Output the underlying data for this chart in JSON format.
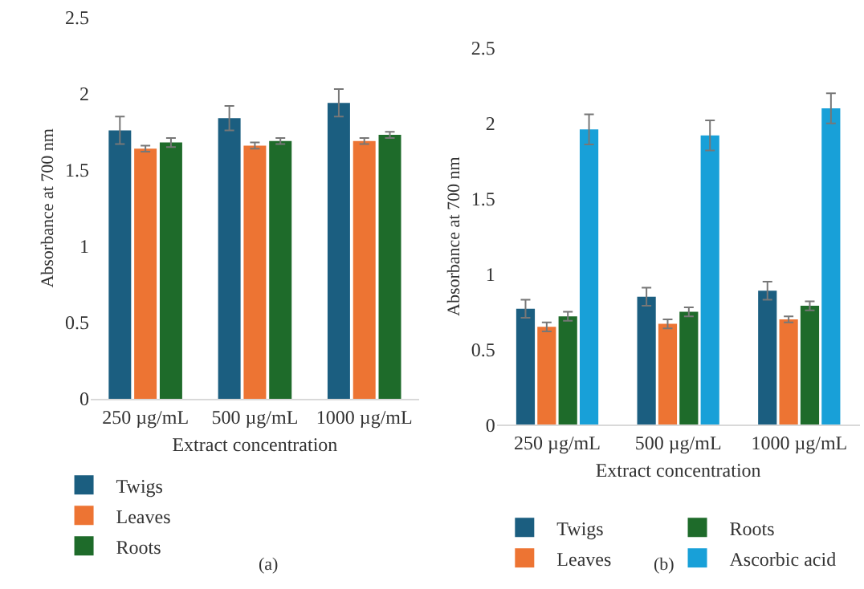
{
  "chart_data": [
    {
      "type": "bar",
      "xlabel": "Extract concentration",
      "ylabel": "Absorbance at 700 nm",
      "categories": [
        "250 µg/mL",
        "500 µg/mL",
        "1000 µg/mL"
      ],
      "ylim": [
        0,
        2.5
      ],
      "yticks": [
        0,
        0.5,
        1,
        1.5,
        2,
        2.5
      ],
      "legend": "bottom left",
      "grid": false,
      "annotations": [
        "(a)"
      ],
      "series": [
        {
          "name": "Twigs",
          "color": "#1b5e80",
          "values": [
            1.76,
            1.84,
            1.94
          ],
          "errors": [
            0.09,
            0.08,
            0.09
          ]
        },
        {
          "name": "Leaves",
          "color": "#ed7433",
          "values": [
            1.64,
            1.66,
            1.69
          ],
          "errors": [
            0.02,
            0.02,
            0.02
          ]
        },
        {
          "name": "Roots",
          "color": "#1e6b2a",
          "values": [
            1.68,
            1.69,
            1.73
          ],
          "errors": [
            0.03,
            0.02,
            0.02
          ]
        }
      ]
    },
    {
      "type": "bar",
      "xlabel": "Extract concentration",
      "ylabel": "Absorbance at 700 nm",
      "categories": [
        "250 µg/mL",
        "500 µg/mL",
        "1000 µg/mL"
      ],
      "ylim": [
        0,
        2.5
      ],
      "yticks": [
        0,
        0.5,
        1,
        1.5,
        2,
        2.5
      ],
      "legend": "bottom",
      "grid": false,
      "annotations": [
        "(b)"
      ],
      "series": [
        {
          "name": "Twigs",
          "color": "#1b5e80",
          "values": [
            0.77,
            0.85,
            0.89
          ],
          "errors": [
            0.06,
            0.06,
            0.06
          ]
        },
        {
          "name": "Leaves",
          "color": "#ed7433",
          "values": [
            0.65,
            0.67,
            0.7
          ],
          "errors": [
            0.03,
            0.03,
            0.02
          ]
        },
        {
          "name": "Roots",
          "color": "#1e6b2a",
          "values": [
            0.72,
            0.75,
            0.79
          ],
          "errors": [
            0.03,
            0.03,
            0.03
          ]
        },
        {
          "name": "Ascorbic acid",
          "color": "#18a0d8",
          "values": [
            1.96,
            1.92,
            2.1
          ],
          "errors": [
            0.1,
            0.1,
            0.1
          ]
        }
      ]
    }
  ]
}
